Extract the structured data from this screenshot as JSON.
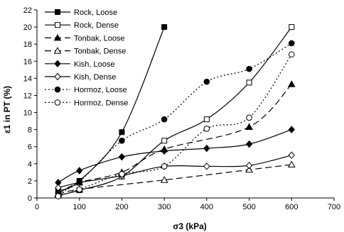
{
  "chart_data": {
    "type": "line",
    "title": "",
    "xlabel": "σ3 (kPa)",
    "ylabel": "ε1 in PT (%)",
    "xlim": [
      0,
      700
    ],
    "ylim": [
      0,
      22
    ],
    "xticks": [
      0,
      100,
      200,
      300,
      400,
      500,
      600,
      700
    ],
    "yticks": [
      0,
      2,
      4,
      6,
      8,
      10,
      12,
      14,
      16,
      18,
      20,
      22
    ],
    "grid": false,
    "legend_position": "top-left",
    "series": [
      {
        "name": "Rock, Loose",
        "marker": "square-filled",
        "dash": "solid",
        "points": [
          [
            50,
            0.8
          ],
          [
            100,
            2.0
          ],
          [
            200,
            7.7
          ],
          [
            300,
            20.0
          ]
        ]
      },
      {
        "name": "Rock, Dense",
        "marker": "square-open",
        "dash": "solid",
        "points": [
          [
            50,
            0.3
          ],
          [
            100,
            0.9
          ],
          [
            200,
            2.5
          ],
          [
            300,
            6.7
          ],
          [
            400,
            9.2
          ],
          [
            500,
            13.5
          ],
          [
            600,
            20.0
          ]
        ]
      },
      {
        "name": "Tonbak, Loose",
        "marker": "triangle-filled",
        "dash": "dashed",
        "points": [
          [
            50,
            0.5
          ],
          [
            100,
            1.8
          ],
          [
            200,
            3.0
          ],
          [
            300,
            5.7
          ],
          [
            500,
            8.3
          ],
          [
            600,
            13.3
          ]
        ]
      },
      {
        "name": "Tonbak, Dense",
        "marker": "triangle-open",
        "dash": "dashed",
        "points": [
          [
            50,
            0.4
          ],
          [
            100,
            1.0
          ],
          [
            300,
            2.1
          ],
          [
            500,
            3.3
          ],
          [
            600,
            3.9
          ]
        ]
      },
      {
        "name": "Kish, Loose",
        "marker": "diamond-filled",
        "dash": "solid",
        "points": [
          [
            50,
            1.8
          ],
          [
            100,
            3.2
          ],
          [
            200,
            4.8
          ],
          [
            300,
            5.5
          ],
          [
            400,
            5.8
          ],
          [
            500,
            6.3
          ],
          [
            600,
            8.0
          ]
        ]
      },
      {
        "name": "Kish, Dense",
        "marker": "diamond-open",
        "dash": "solid",
        "points": [
          [
            50,
            1.2
          ],
          [
            100,
            1.8
          ],
          [
            200,
            2.6
          ],
          [
            300,
            3.7
          ],
          [
            400,
            3.7
          ],
          [
            500,
            3.8
          ],
          [
            600,
            5.0
          ]
        ]
      },
      {
        "name": "Hormoz, Loose",
        "marker": "circle-filled",
        "dash": "dotted",
        "points": [
          [
            50,
            0.6
          ],
          [
            100,
            1.9
          ],
          [
            200,
            6.7
          ],
          [
            300,
            9.2
          ],
          [
            400,
            13.6
          ],
          [
            500,
            15.1
          ],
          [
            600,
            18.1
          ]
        ]
      },
      {
        "name": "Hormoz, Dense",
        "marker": "circle-open",
        "dash": "dotted",
        "points": [
          [
            50,
            0.2
          ],
          [
            100,
            1.0
          ],
          [
            200,
            2.8
          ],
          [
            300,
            3.7
          ],
          [
            400,
            8.1
          ],
          [
            500,
            9.4
          ],
          [
            600,
            16.8
          ]
        ]
      }
    ]
  }
}
